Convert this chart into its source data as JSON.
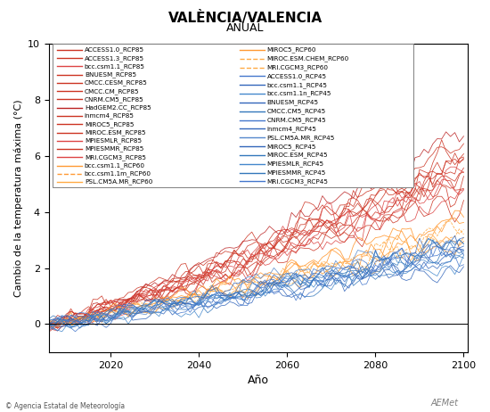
{
  "title": "VALÈNCIA/VALENCIA",
  "subtitle": "ANUAL",
  "xlabel": "Año",
  "ylabel": "Cambio de la temperatura máxima (°C)",
  "xlim": [
    2006,
    2101
  ],
  "ylim": [
    -1,
    10
  ],
  "yticks": [
    0,
    2,
    4,
    6,
    8,
    10
  ],
  "xticks": [
    2020,
    2040,
    2060,
    2080,
    2100
  ],
  "copyright": "© Agencia Estatal de Meteorología",
  "left_legend": [
    [
      "#CC3322",
      "ACCESS1.0_RCP85"
    ],
    [
      "#CC3322",
      "ACCESS1.3_RCP85"
    ],
    [
      "#DD4444",
      "bcc.csm1.1_RCP85"
    ],
    [
      "#CC3322",
      "BNUESM_RCP85"
    ],
    [
      "#CC3322",
      "CMCC.CESM_RCP85"
    ],
    [
      "#CC3322",
      "CMCC.CM_RCP85"
    ],
    [
      "#CC3322",
      "CNRM.CM5_RCP85"
    ],
    [
      "#BB2222",
      "HadGEM2.CC_RCP85"
    ],
    [
      "#CC3322",
      "inmcm4_RCP85"
    ],
    [
      "#CC3322",
      "MIROC5_RCP85"
    ],
    [
      "#CC3322",
      "MIROC.ESM_RCP85"
    ],
    [
      "#DD4444",
      "MPIESMLR_RCP85"
    ],
    [
      "#CC3322",
      "MPIESMMR_RCP85"
    ],
    [
      "#DD4444",
      "MRI.CGCM3_RCP85"
    ],
    [
      "#FF9933",
      "bcc.csm1.1_RCP60"
    ],
    [
      "#FF9933",
      "bcc.csm1.1m_RCP60"
    ],
    [
      "#FFAA44",
      "PSL.CM5A.MR_RCP60"
    ]
  ],
  "right_legend": [
    [
      "#FF9933",
      "MIROC5_RCP60"
    ],
    [
      "#FFAA44",
      "MIROC.ESM.CHEM_RCP60"
    ],
    [
      "#FFAA44",
      "MRI.CGCM3_RCP60"
    ],
    [
      "#4477CC",
      "ACCESS1.0_RCP45"
    ],
    [
      "#3366BB",
      "bcc.csm1.1_RCP45"
    ],
    [
      "#4488CC",
      "bcc.csm1.1n_RCP45"
    ],
    [
      "#3366BB",
      "BNUESM_RCP45"
    ],
    [
      "#3377BB",
      "CMCC.CM5_RCP45"
    ],
    [
      "#4477CC",
      "CNRM.CM5_RCP45"
    ],
    [
      "#3366BB",
      "inmcm4_RCP45"
    ],
    [
      "#5588CC",
      "PSL.CM5A.MR_RCP45"
    ],
    [
      "#3366BB",
      "MIROC5_RCP45"
    ],
    [
      "#3377BB",
      "MIROC.ESM_RCP45"
    ],
    [
      "#4488CC",
      "MPIESMLR_RCP45"
    ],
    [
      "#3377BB",
      "MPIESMMR_RCP45"
    ],
    [
      "#4477CC",
      "MRI.CGCM3_RCP45"
    ]
  ],
  "rcp85_color": "#CC3322",
  "rcp60_color_solid": "#FF9933",
  "rcp60_color_dashed": "#FFAA44",
  "rcp45_color": "#4477CC",
  "background": "#ffffff"
}
